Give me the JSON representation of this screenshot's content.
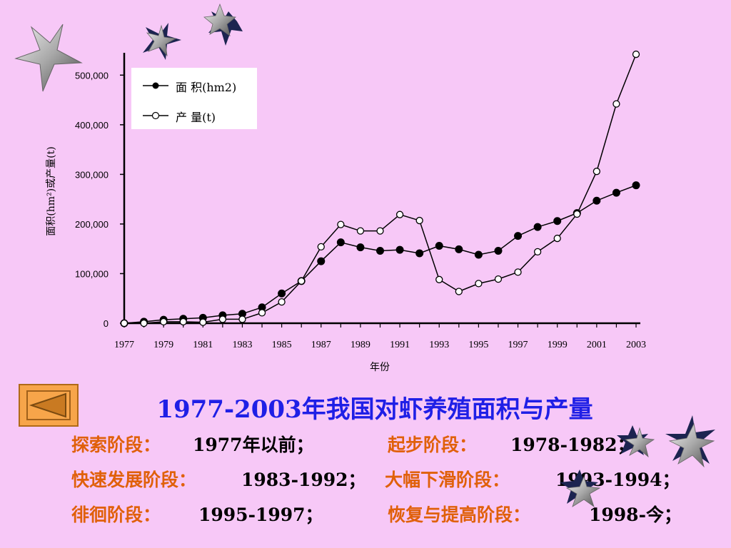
{
  "chart_data": {
    "type": "line",
    "x": [
      1977,
      1978,
      1979,
      1980,
      1981,
      1982,
      1983,
      1984,
      1985,
      1986,
      1987,
      1988,
      1989,
      1990,
      1991,
      1992,
      1993,
      1994,
      1995,
      1996,
      1997,
      1998,
      1999,
      2000,
      2001,
      2002,
      2003
    ],
    "series": [
      {
        "name": "面  积(hm2)",
        "marker": "filled",
        "values": [
          0,
          3000,
          7000,
          9000,
          11000,
          16000,
          19000,
          32000,
          60000,
          85000,
          125000,
          163000,
          153000,
          146000,
          148000,
          141000,
          156000,
          149000,
          138000,
          146000,
          176000,
          194000,
          206000,
          222000,
          247000,
          263000,
          278000
        ]
      },
      {
        "name": "产  量(t)",
        "marker": "open",
        "values": [
          0,
          0,
          3000,
          3000,
          2000,
          8000,
          8000,
          21000,
          43000,
          85000,
          154000,
          199000,
          186000,
          186000,
          219000,
          207000,
          88000,
          64000,
          80000,
          89000,
          103000,
          144000,
          171000,
          220000,
          306000,
          442000,
          542000
        ]
      }
    ],
    "xticks": [
      "1977",
      "1979",
      "1981",
      "1983",
      "1985",
      "1987",
      "1989",
      "1991",
      "1993",
      "1995",
      "1997",
      "1999",
      "2001",
      "2003"
    ],
    "yticks": [
      "0",
      "100,000",
      "200,000",
      "300,000",
      "400,000",
      "500,000"
    ],
    "ylim": [
      0,
      545000
    ],
    "xlabel": "年份",
    "ylabel": "面积(hm²)或产量(t)",
    "legend_position": "top-left"
  },
  "title": "1977-2003年我国对虾养殖面积与产量",
  "stages": [
    {
      "label": "探索阶段：",
      "value": "1977年以前；"
    },
    {
      "label": "起步阶段：",
      "value": "1978-1982；"
    },
    {
      "label": "快速发展阶段：",
      "value": "1983-1992；"
    },
    {
      "label": "大幅下滑阶段：",
      "value": "1993-1994；"
    },
    {
      "label": "徘徊阶段：",
      "value": "1995-1997；"
    },
    {
      "label": "恢复与提高阶段：",
      "value": "1998-今；"
    }
  ],
  "nav": {
    "back_icon": "left-triangle-icon"
  },
  "colors": {
    "background": "#f7c8f7",
    "title": "#1f1fe6",
    "stage_label": "#e0600a",
    "button": "#f7a54a"
  }
}
